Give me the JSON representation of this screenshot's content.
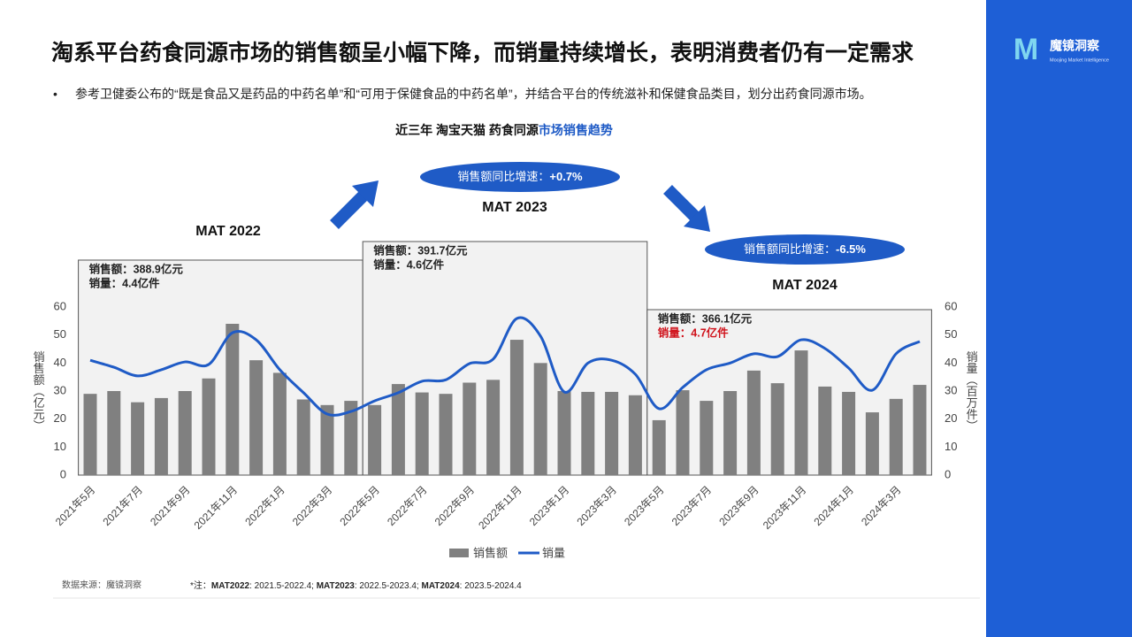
{
  "header": {
    "title": "淘系平台药食同源市场的销售额呈小幅下降，而销量持续增长，表明消费者仍有一定需求",
    "bullet": "参考卫健委公布的“既是食品又是药品的中药名单”和“可用于保健食品的中药名单”，并结合平台的传统滋补和保健食品类目，划分出药食同源市场。"
  },
  "logo": {
    "name": "魔镜洞察",
    "tagline": "Moojing Market Intelligence"
  },
  "chart_data": {
    "type": "bar",
    "title": "近三年 淘宝天猫 药食同源",
    "title_highlight": "市场销售趋势",
    "categories": [
      "2021年5月",
      null,
      "2021年7月",
      null,
      "2021年9月",
      null,
      "2021年11月",
      null,
      "2022年1月",
      null,
      "2022年3月",
      null,
      "2022年5月",
      null,
      "2022年7月",
      null,
      "2022年9月",
      null,
      "2022年11月",
      null,
      "2023年1月",
      null,
      "2023年3月",
      null,
      "2023年5月",
      null,
      "2023年7月",
      null,
      "2023年9月",
      null,
      "2023年11月",
      null,
      "2024年1月",
      null,
      "2024年3月",
      null
    ],
    "series": [
      {
        "name": "销售额",
        "type": "bar",
        "color": "#808080",
        "values": [
          29,
          30,
          26,
          27.5,
          30,
          34.5,
          54,
          41,
          36.5,
          27,
          25,
          26.5,
          25,
          32.5,
          29.5,
          29,
          33,
          34,
          48.3,
          40,
          30,
          29.7,
          29.7,
          28.5,
          19.6,
          30.3,
          26.5,
          30,
          37.3,
          32.8,
          44.5,
          31.6,
          29.7,
          22.4,
          27.2,
          32.2
        ]
      },
      {
        "name": "销量",
        "type": "line",
        "axis": "y2",
        "color": "#1f5bc6",
        "values": [
          41,
          38.5,
          35.4,
          37.6,
          40.4,
          39.5,
          50.8,
          48.3,
          37.6,
          29.4,
          21.8,
          22.7,
          26.5,
          29.4,
          33.5,
          34,
          39.8,
          41.4,
          55.9,
          49.6,
          29.7,
          40,
          41,
          36,
          23.7,
          31.3,
          37.6,
          40,
          43.3,
          42.3,
          48.3,
          45.2,
          38.2,
          30.3,
          43.3,
          47.7
        ]
      }
    ],
    "ylim": [
      0,
      60
    ],
    "yticks": [
      0,
      10,
      20,
      30,
      40,
      50,
      60
    ],
    "ylabel": "销售额（亿元）",
    "y2lim": [
      0,
      60
    ],
    "y2ticks": [
      0,
      10,
      20,
      30,
      40,
      50,
      60
    ],
    "y2label": "销量（百万件）",
    "legend": "bottom",
    "periods": [
      {
        "label": "MAT 2022",
        "sales": "销售额：388.9亿元",
        "volume": "销量：4.4亿件",
        "volume_color": "#222222"
      },
      {
        "label": "MAT 2023",
        "sales": "销售额：391.7亿元",
        "volume": "销量：4.6亿件",
        "volume_color": "#222222",
        "growth_label": "销售额同比增速：",
        "growth": "+0.7%"
      },
      {
        "label": "MAT 2024",
        "sales": "销售额：366.1亿元",
        "volume": "销量：4.7亿件",
        "volume_color": "#d0121b",
        "growth_label": "销售额同比增速：",
        "growth": "-6.5%"
      }
    ]
  },
  "footer": {
    "source": "数据来源：魔镜洞察",
    "note": [
      {
        "text": "*注：",
        "bold": false
      },
      {
        "text": "MAT2022",
        "bold": true
      },
      {
        "text": ": 2021.5-2022.4; ",
        "bold": false
      },
      {
        "text": "MAT2023",
        "bold": true
      },
      {
        "text": ": 2022.5-2023.4; ",
        "bold": false
      },
      {
        "text": "MAT2024",
        "bold": true
      },
      {
        "text": ": 2023.5-2024.4",
        "bold": false
      }
    ]
  }
}
